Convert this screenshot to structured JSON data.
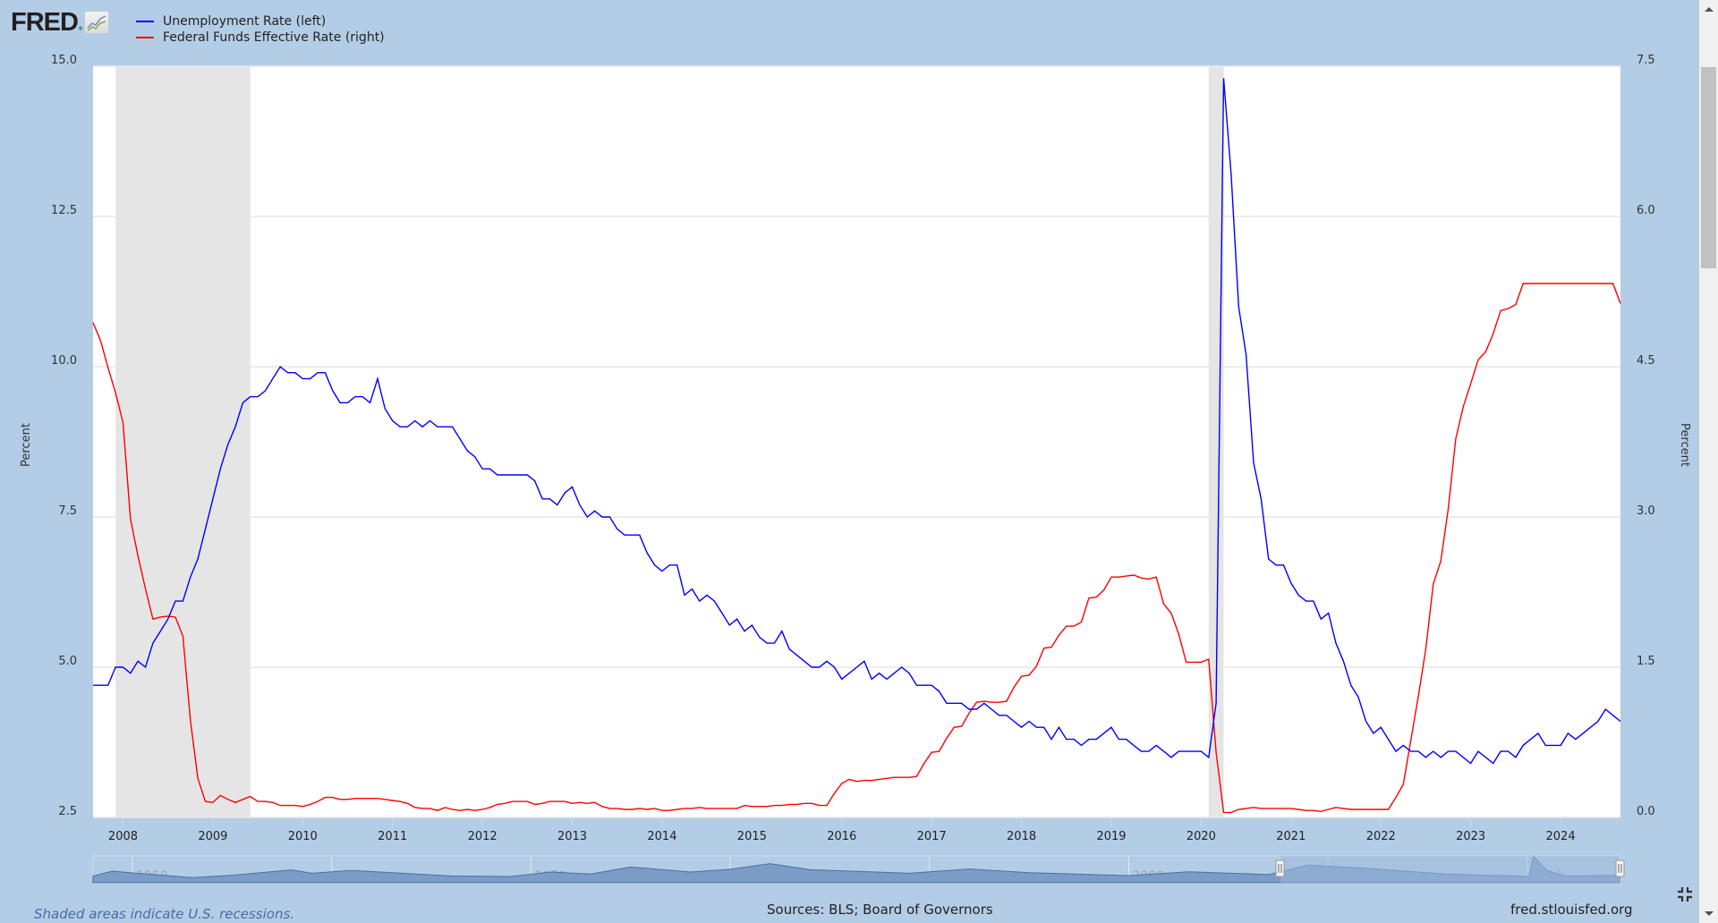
{
  "header": {
    "logo_text": "FRED",
    "logo_reg": "®",
    "legend": [
      {
        "label": "Unemployment Rate (left)",
        "color": "#0000ff"
      },
      {
        "label": "Federal Funds Effective Rate (right)",
        "color": "#ff0000"
      }
    ]
  },
  "axes": {
    "left_title": "Percent",
    "right_title": "Percent",
    "left_ticks": [
      "15.0",
      "12.5",
      "10.0",
      "7.5",
      "5.0",
      "2.5"
    ],
    "right_ticks": [
      "7.5",
      "6.0",
      "4.5",
      "3.0",
      "1.5",
      "0.0"
    ],
    "x_ticks": [
      "2008",
      "2009",
      "2010",
      "2011",
      "2012",
      "2013",
      "2014",
      "2015",
      "2016",
      "2017",
      "2018",
      "2019",
      "2020",
      "2021",
      "2022",
      "2023",
      "2024"
    ]
  },
  "navigator": {
    "labels": [
      "1950",
      "1960",
      "1970",
      "1980",
      "1990",
      "2000",
      "2010",
      "2020"
    ]
  },
  "footer": {
    "note": "Shaded areas indicate U.S. recessions.",
    "sources": "Sources: BLS; Board of Governors",
    "url": "fred.stlouisfed.org"
  },
  "colors": {
    "background": "#b3cde6",
    "plot_bg": "#ffffff",
    "recession": "#e5e5e5",
    "unrate": "#0000ff",
    "fedfunds": "#ff0000"
  },
  "chart_data": {
    "type": "line",
    "title": "",
    "xlabel": "",
    "ylabel": "Percent",
    "y2label": "Percent",
    "start": "2007-09",
    "end": "2024-09",
    "frequency": "monthly",
    "ylim": [
      2.5,
      15.0
    ],
    "y2lim": [
      0.0,
      7.5
    ],
    "grid": true,
    "legend_position": "top-left",
    "recessions": [
      {
        "start": "2007-12",
        "end": "2009-06"
      },
      {
        "start": "2020-02",
        "end": "2020-04"
      }
    ],
    "series": [
      {
        "name": "Unemployment Rate (left)",
        "axis": "left",
        "color": "#0000ff",
        "values": [
          4.7,
          4.7,
          4.7,
          5.0,
          5.0,
          4.9,
          5.1,
          5.0,
          5.4,
          5.6,
          5.8,
          6.1,
          6.1,
          6.5,
          6.8,
          7.3,
          7.8,
          8.3,
          8.7,
          9.0,
          9.4,
          9.5,
          9.5,
          9.6,
          9.8,
          10.0,
          9.9,
          9.9,
          9.8,
          9.8,
          9.9,
          9.9,
          9.6,
          9.4,
          9.4,
          9.5,
          9.5,
          9.4,
          9.8,
          9.3,
          9.1,
          9.0,
          9.0,
          9.1,
          9.0,
          9.1,
          9.0,
          9.0,
          9.0,
          8.8,
          8.6,
          8.5,
          8.3,
          8.3,
          8.2,
          8.2,
          8.2,
          8.2,
          8.2,
          8.1,
          7.8,
          7.8,
          7.7,
          7.9,
          8.0,
          7.7,
          7.5,
          7.6,
          7.5,
          7.5,
          7.3,
          7.2,
          7.2,
          7.2,
          6.9,
          6.7,
          6.6,
          6.7,
          6.7,
          6.2,
          6.3,
          6.1,
          6.2,
          6.1,
          5.9,
          5.7,
          5.8,
          5.6,
          5.7,
          5.5,
          5.4,
          5.4,
          5.6,
          5.3,
          5.2,
          5.1,
          5.0,
          5.0,
          5.1,
          5.0,
          4.8,
          4.9,
          5.0,
          5.1,
          4.8,
          4.9,
          4.8,
          4.9,
          5.0,
          4.9,
          4.7,
          4.7,
          4.7,
          4.6,
          4.4,
          4.4,
          4.4,
          4.3,
          4.3,
          4.4,
          4.3,
          4.2,
          4.2,
          4.1,
          4.0,
          4.1,
          4.0,
          4.0,
          3.8,
          4.0,
          3.8,
          3.8,
          3.7,
          3.8,
          3.8,
          3.9,
          4.0,
          3.8,
          3.8,
          3.7,
          3.6,
          3.6,
          3.7,
          3.6,
          3.5,
          3.6,
          3.6,
          3.6,
          3.6,
          3.5,
          4.4,
          14.8,
          13.2,
          11.0,
          10.2,
          8.4,
          7.8,
          6.8,
          6.7,
          6.7,
          6.4,
          6.2,
          6.1,
          6.1,
          5.8,
          5.9,
          5.4,
          5.1,
          4.7,
          4.5,
          4.1,
          3.9,
          4.0,
          3.8,
          3.6,
          3.7,
          3.6,
          3.6,
          3.5,
          3.6,
          3.5,
          3.6,
          3.6,
          3.5,
          3.4,
          3.6,
          3.5,
          3.4,
          3.6,
          3.6,
          3.5,
          3.7,
          3.8,
          3.9,
          3.7,
          3.7,
          3.7,
          3.9,
          3.8,
          3.9,
          4.0,
          4.1,
          4.3,
          4.2,
          4.1
        ]
      },
      {
        "name": "Federal Funds Effective Rate (right)",
        "axis": "right",
        "color": "#ff0000",
        "values": [
          4.94,
          4.76,
          4.49,
          4.24,
          3.94,
          2.98,
          2.61,
          2.28,
          1.98,
          2.0,
          2.01,
          2.0,
          1.81,
          0.97,
          0.39,
          0.16,
          0.15,
          0.22,
          0.18,
          0.15,
          0.18,
          0.21,
          0.16,
          0.16,
          0.15,
          0.12,
          0.12,
          0.12,
          0.11,
          0.13,
          0.16,
          0.2,
          0.2,
          0.18,
          0.18,
          0.19,
          0.19,
          0.19,
          0.19,
          0.18,
          0.17,
          0.16,
          0.14,
          0.1,
          0.09,
          0.09,
          0.07,
          0.1,
          0.08,
          0.07,
          0.08,
          0.07,
          0.08,
          0.1,
          0.13,
          0.14,
          0.16,
          0.16,
          0.16,
          0.13,
          0.14,
          0.16,
          0.16,
          0.16,
          0.14,
          0.15,
          0.14,
          0.15,
          0.11,
          0.09,
          0.09,
          0.08,
          0.08,
          0.09,
          0.08,
          0.09,
          0.07,
          0.07,
          0.08,
          0.09,
          0.09,
          0.1,
          0.09,
          0.09,
          0.09,
          0.09,
          0.09,
          0.12,
          0.11,
          0.11,
          0.11,
          0.12,
          0.12,
          0.13,
          0.13,
          0.14,
          0.14,
          0.12,
          0.12,
          0.24,
          0.34,
          0.38,
          0.36,
          0.37,
          0.37,
          0.38,
          0.39,
          0.4,
          0.4,
          0.4,
          0.41,
          0.54,
          0.65,
          0.66,
          0.79,
          0.9,
          0.91,
          1.04,
          1.15,
          1.16,
          1.15,
          1.15,
          1.16,
          1.3,
          1.41,
          1.42,
          1.51,
          1.69,
          1.7,
          1.82,
          1.91,
          1.91,
          1.95,
          2.19,
          2.2,
          2.27,
          2.4,
          2.4,
          2.41,
          2.42,
          2.39,
          2.38,
          2.4,
          2.13,
          2.04,
          1.83,
          1.55,
          1.55,
          1.55,
          1.58,
          0.65,
          0.05,
          0.05,
          0.08,
          0.09,
          0.1,
          0.09,
          0.09,
          0.09,
          0.09,
          0.09,
          0.08,
          0.07,
          0.07,
          0.06,
          0.08,
          0.1,
          0.09,
          0.08,
          0.08,
          0.08,
          0.08,
          0.08,
          0.08,
          0.2,
          0.33,
          0.77,
          1.21,
          1.68,
          2.33,
          2.56,
          3.08,
          3.78,
          4.1,
          4.33,
          4.57,
          4.65,
          4.83,
          5.06,
          5.08,
          5.12,
          5.33,
          5.33,
          5.33,
          5.33,
          5.33,
          5.33,
          5.33,
          5.33,
          5.33,
          5.33,
          5.33,
          5.33,
          5.33,
          5.13
        ]
      }
    ]
  }
}
